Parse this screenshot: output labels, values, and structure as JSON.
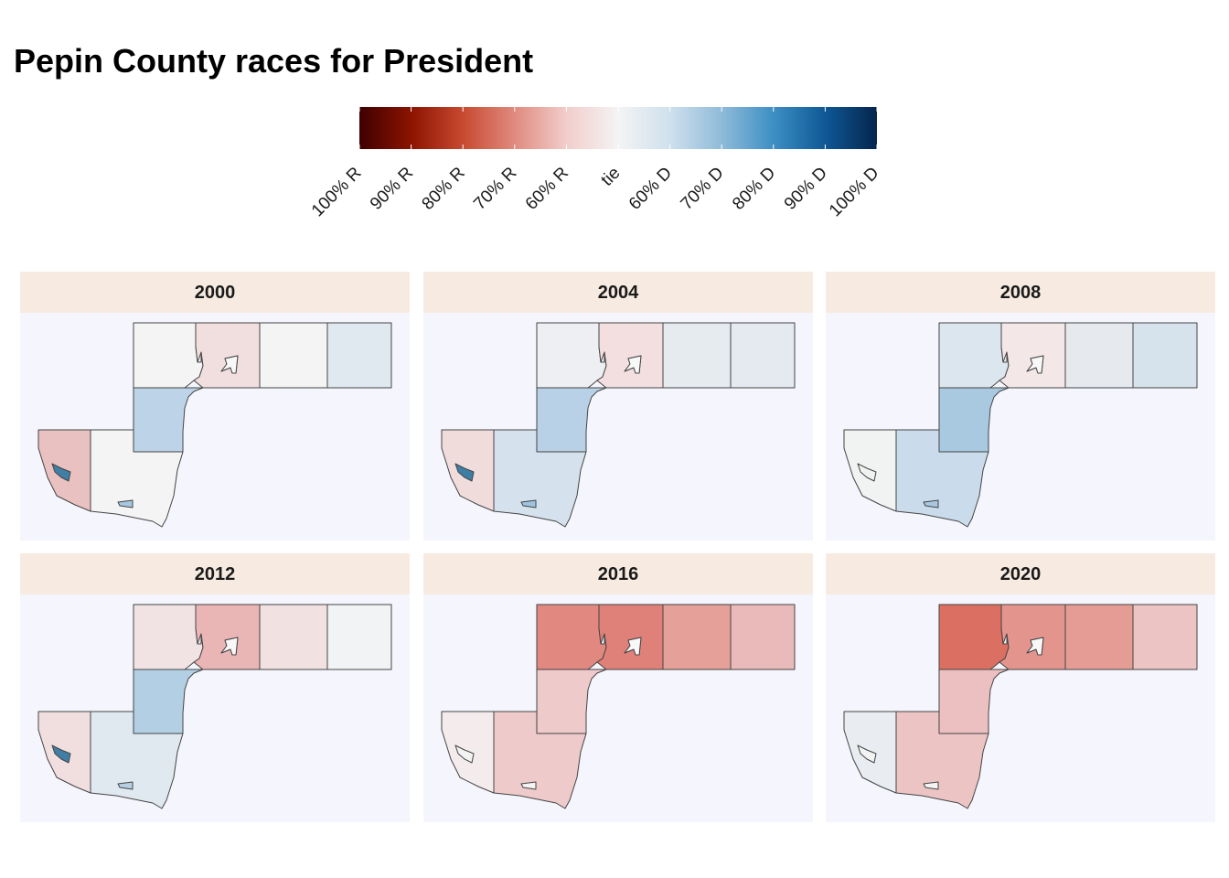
{
  "title": "Pepin County races for President",
  "legend": {
    "labels": [
      "100% R",
      "90% R",
      "80% R",
      "70% R",
      "60% R",
      "tie",
      "60% D",
      "70% D",
      "80% D",
      "90% D",
      "100% D"
    ],
    "colors": [
      "#3f0000",
      "#8c1400",
      "#c84a30",
      "#e08a7f",
      "#f1cdcb",
      "#f4f4f4",
      "#cfe0ed",
      "#8fbbd9",
      "#3d8fc4",
      "#0e5896",
      "#05254d"
    ]
  },
  "regions": [
    "north-west",
    "north-middle",
    "enclave-north",
    "north-east-1",
    "north-east-2",
    "center-strip",
    "south-west",
    "south-middle",
    "enclave-south-west",
    "enclave-south"
  ],
  "panels": [
    {
      "year": "2000",
      "fills": {
        "north-west": "#f4f4f4",
        "north-middle": "#f1dfdf",
        "enclave-north": "#f8f8f8",
        "north-east-1": "#f4f4f4",
        "north-east-2": "#e0e8f0",
        "center-strip": "#bdd4e8",
        "south-west": "#eac1c1",
        "south-middle": "#f4f4f4",
        "enclave-south-west": "#3f7fa6",
        "enclave-south": "#a6c7e0"
      }
    },
    {
      "year": "2004",
      "fills": {
        "north-west": "#eeeff3",
        "north-middle": "#f3dfdf",
        "enclave-north": "#f8f8f8",
        "north-east-1": "#e6ebf0",
        "north-east-2": "#e4eaf0",
        "center-strip": "#b9d1e6",
        "south-west": "#f1dcdc",
        "south-middle": "#d5e1ec",
        "enclave-south-west": "#3d7ea6",
        "enclave-south": "#9ec3de"
      }
    },
    {
      "year": "2008",
      "fills": {
        "north-west": "#dce6ef",
        "north-middle": "#f3e7e7",
        "enclave-north": "#f8f8f8",
        "north-east-1": "#e6eaef",
        "north-east-2": "#d6e2ec",
        "center-strip": "#a9c9e0",
        "south-west": "#f1f2f2",
        "south-middle": "#cadbeb",
        "enclave-south-west": "#f1f2f2",
        "enclave-south": "#a8c7df"
      }
    },
    {
      "year": "2012",
      "fills": {
        "north-west": "#f1e3e3",
        "north-middle": "#eab5b5",
        "enclave-north": "#f8f8f8",
        "north-east-1": "#f1e1e1",
        "north-east-2": "#f2f3f5",
        "center-strip": "#b3cfe4",
        "south-west": "#f1dfdf",
        "south-middle": "#e0e8f0",
        "enclave-south-west": "#3f7fa6",
        "enclave-south": "#b6cfe3"
      }
    },
    {
      "year": "2016",
      "fills": {
        "north-west": "#e18880",
        "north-middle": "#df8178",
        "enclave-north": "#f8f8f8",
        "north-east-1": "#e5a099",
        "north-east-2": "#eababa",
        "center-strip": "#efcaca",
        "south-west": "#f4ecec",
        "south-middle": "#eecaca",
        "enclave-south-west": "#f3f3f3",
        "enclave-south": "#f4f4f4"
      }
    },
    {
      "year": "2020",
      "fills": {
        "north-west": "#da6f62",
        "north-middle": "#e3958d",
        "enclave-north": "#f8f8f8",
        "north-east-1": "#e49c95",
        "north-east-2": "#ecc4c4",
        "center-strip": "#ecc0c0",
        "south-west": "#e9edf1",
        "south-middle": "#ecc4c4",
        "enclave-south-west": "#f3f3f3",
        "enclave-south": "#f4f4f4"
      }
    }
  ]
}
